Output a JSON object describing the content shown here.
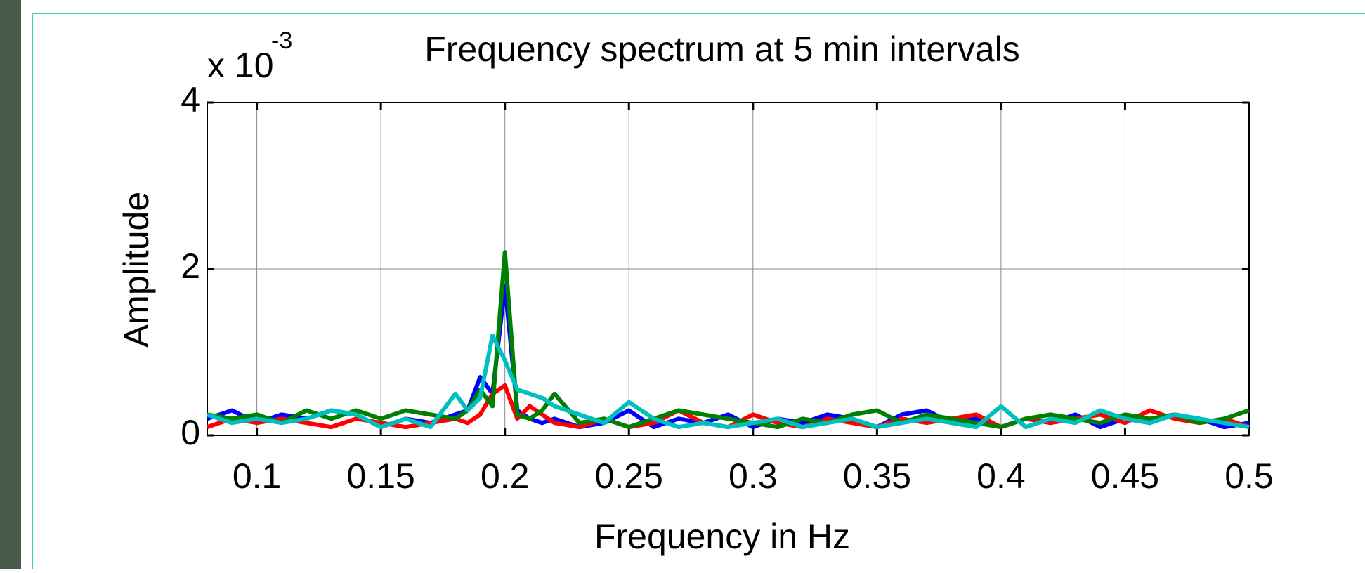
{
  "chart_data": {
    "type": "line",
    "title": "Frequency spectrum at 5 min intervals",
    "y_multiplier": {
      "base": "x 10",
      "exponent": "-3"
    },
    "xlabel": "Frequency in Hz",
    "ylabel": "Amplitude",
    "x": [
      0.08,
      0.09,
      0.1,
      0.11,
      0.12,
      0.13,
      0.14,
      0.15,
      0.16,
      0.17,
      0.18,
      0.185,
      0.19,
      0.195,
      0.2,
      0.205,
      0.21,
      0.215,
      0.22,
      0.23,
      0.24,
      0.25,
      0.26,
      0.27,
      0.28,
      0.29,
      0.3,
      0.31,
      0.32,
      0.33,
      0.34,
      0.35,
      0.36,
      0.37,
      0.38,
      0.39,
      0.4,
      0.41,
      0.42,
      0.43,
      0.44,
      0.45,
      0.46,
      0.47,
      0.48,
      0.49,
      0.5
    ],
    "series": [
      {
        "color": "#0000ff",
        "values": [
          0.2,
          0.3,
          0.15,
          0.25,
          0.2,
          0.3,
          0.25,
          0.1,
          0.2,
          0.15,
          0.25,
          0.3,
          0.7,
          0.5,
          1.8,
          0.3,
          0.2,
          0.15,
          0.2,
          0.1,
          0.15,
          0.3,
          0.1,
          0.2,
          0.15,
          0.25,
          0.1,
          0.2,
          0.15,
          0.25,
          0.2,
          0.1,
          0.25,
          0.3,
          0.15,
          0.2,
          0.1,
          0.2,
          0.15,
          0.25,
          0.1,
          0.2,
          0.15,
          0.25,
          0.2,
          0.1,
          0.15
        ]
      },
      {
        "color": "#ff0000",
        "values": [
          0.1,
          0.2,
          0.15,
          0.2,
          0.15,
          0.1,
          0.2,
          0.15,
          0.1,
          0.15,
          0.2,
          0.15,
          0.25,
          0.5,
          0.6,
          0.2,
          0.35,
          0.25,
          0.15,
          0.1,
          0.2,
          0.1,
          0.15,
          0.3,
          0.15,
          0.1,
          0.25,
          0.15,
          0.1,
          0.2,
          0.15,
          0.1,
          0.2,
          0.15,
          0.2,
          0.25,
          0.1,
          0.2,
          0.15,
          0.2,
          0.25,
          0.15,
          0.3,
          0.2,
          0.15,
          0.2,
          0.1
        ]
      },
      {
        "color": "#008000",
        "values": [
          0.25,
          0.2,
          0.25,
          0.15,
          0.3,
          0.2,
          0.3,
          0.2,
          0.3,
          0.25,
          0.2,
          0.3,
          0.55,
          0.35,
          2.2,
          0.25,
          0.2,
          0.3,
          0.5,
          0.15,
          0.2,
          0.1,
          0.2,
          0.3,
          0.25,
          0.2,
          0.15,
          0.1,
          0.2,
          0.15,
          0.25,
          0.3,
          0.15,
          0.25,
          0.2,
          0.15,
          0.1,
          0.2,
          0.25,
          0.2,
          0.15,
          0.25,
          0.2,
          0.25,
          0.15,
          0.2,
          0.3
        ]
      },
      {
        "color": "#00bfbf",
        "values": [
          0.25,
          0.15,
          0.2,
          0.15,
          0.2,
          0.3,
          0.25,
          0.1,
          0.2,
          0.1,
          0.5,
          0.3,
          0.45,
          1.2,
          0.9,
          0.55,
          0.5,
          0.45,
          0.35,
          0.25,
          0.15,
          0.4,
          0.2,
          0.1,
          0.15,
          0.1,
          0.15,
          0.2,
          0.1,
          0.15,
          0.2,
          0.1,
          0.15,
          0.2,
          0.15,
          0.1,
          0.35,
          0.1,
          0.2,
          0.15,
          0.3,
          0.2,
          0.15,
          0.25,
          0.2,
          0.15,
          0.1
        ]
      }
    ],
    "xlim": [
      0.08,
      0.5
    ],
    "xticks": [
      0.1,
      0.15,
      0.2,
      0.25,
      0.3,
      0.35,
      0.4,
      0.45,
      0.5
    ],
    "ylim": [
      0,
      4
    ],
    "yticks": [
      0,
      2,
      4
    ],
    "grid": true
  }
}
